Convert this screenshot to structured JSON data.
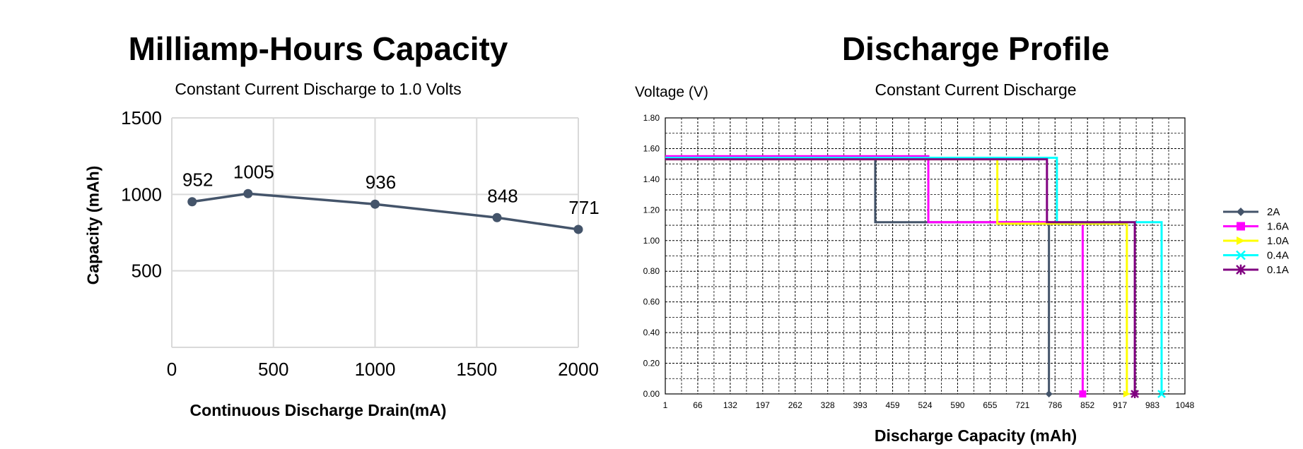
{
  "colors": {
    "left_line": "#44546A",
    "left_grid": "#D9D9D9",
    "right_grid": "#000000"
  },
  "chart_data": [
    {
      "type": "line",
      "title": "Milliamp-Hours Capacity",
      "subtitle": "Constant Current Discharge to 1.0 Volts",
      "xlabel": "Continuous Discharge Drain(mA)",
      "ylabel": "Capacity (mAh)",
      "xlim": [
        0,
        2000
      ],
      "ylim": [
        0,
        1500
      ],
      "xticks": [
        "0",
        "500",
        "1000",
        "1500",
        "2000"
      ],
      "yticks": [
        "500",
        "1000",
        "1500"
      ],
      "grid": true,
      "series": [
        {
          "color": "#44546A",
          "points": [
            {
              "x": 100,
              "y": 952,
              "label": "952"
            },
            {
              "x": 375,
              "y": 1005,
              "label": "1005"
            },
            {
              "x": 1000,
              "y": 936,
              "label": "936"
            },
            {
              "x": 1600,
              "y": 848,
              "label": "848"
            },
            {
              "x": 2000,
              "y": 771,
              "label": "771"
            }
          ]
        }
      ]
    },
    {
      "type": "line",
      "title": "Discharge Profile",
      "subtitle": "Constant Current Discharge",
      "xlabel": "Discharge Capacity (mAh)",
      "ylabel": "Voltage (V)",
      "xlim": [
        1,
        1048
      ],
      "ylim": [
        0,
        1.8
      ],
      "xticks": [
        "1",
        "66",
        "132",
        "197",
        "262",
        "328",
        "393",
        "459",
        "524",
        "590",
        "655",
        "721",
        "786",
        "852",
        "917",
        "983",
        "1048"
      ],
      "yticks": [
        "0.00",
        "0.20",
        "0.40",
        "0.60",
        "0.80",
        "1.00",
        "1.20",
        "1.40",
        "1.60",
        "1.80"
      ],
      "grid": true,
      "legend_position": "right",
      "series": [
        {
          "name": "2A",
          "color": "#44546A",
          "marker": "diamond",
          "steps": [
            [
              1,
              1.54
            ],
            [
              424,
              1.54
            ],
            [
              424,
              1.12
            ],
            [
              774,
              1.12
            ],
            [
              774,
              0.0
            ]
          ]
        },
        {
          "name": "1.6A",
          "color": "#FF00FF",
          "marker": "square",
          "steps": [
            [
              1,
              1.55
            ],
            [
              531,
              1.55
            ],
            [
              531,
              1.12
            ],
            [
              842,
              1.12
            ],
            [
              842,
              0.0
            ]
          ]
        },
        {
          "name": "1.0A",
          "color": "#FFFF00",
          "marker": "triangle",
          "steps": [
            [
              1,
              1.53
            ],
            [
              670,
              1.53
            ],
            [
              670,
              1.11
            ],
            [
              931,
              1.11
            ],
            [
              931,
              0.0
            ]
          ]
        },
        {
          "name": "0.4A",
          "color": "#00FFFF",
          "marker": "x",
          "steps": [
            [
              1,
              1.54
            ],
            [
              790,
              1.54
            ],
            [
              790,
              1.12
            ],
            [
              1001,
              1.12
            ],
            [
              1001,
              0.0
            ]
          ]
        },
        {
          "name": "0.1A",
          "color": "#800080",
          "marker": "star",
          "steps": [
            [
              1,
              1.53
            ],
            [
              770,
              1.53
            ],
            [
              770,
              1.12
            ],
            [
              947,
              1.12
            ],
            [
              947,
              0.0
            ]
          ]
        }
      ]
    }
  ]
}
